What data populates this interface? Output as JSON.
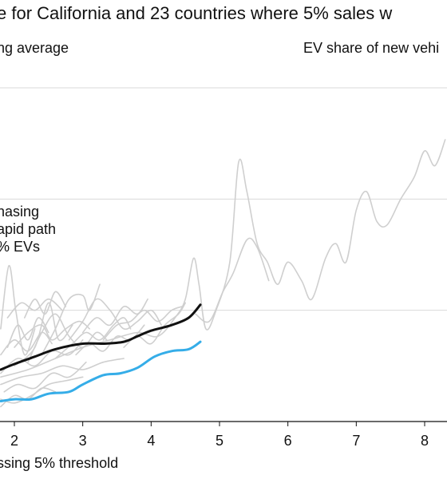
{
  "title": "e for California and 23 countries where 5% sales w",
  "subtitle_left": "ng average",
  "subtitle_right": "EV share of new vehi",
  "annotation_lines": [
    "hasing",
    "apid path",
    "% EVs"
  ],
  "xlabel": "ssing 5% threshold",
  "colors": {
    "highlight": "#35ade8",
    "black": "#111111",
    "gray": "#cfcfcf",
    "grid": "#d9d9d9"
  },
  "chart_data": {
    "type": "line",
    "xlabel": "ssing 5% threshold",
    "x_ticks": [
      2,
      3,
      4,
      5,
      6,
      7,
      8
    ],
    "xlim": [
      1.8,
      8.35
    ],
    "ylim": [
      0,
      1
    ],
    "gridlines": [
      0.3,
      0.6,
      0.9
    ],
    "grid": true,
    "series": [
      {
        "color": "black",
        "points": [
          [
            1.8,
            0.14
          ],
          [
            2.0,
            0.155
          ],
          [
            2.3,
            0.175
          ],
          [
            2.6,
            0.195
          ],
          [
            3.0,
            0.21
          ],
          [
            3.3,
            0.21
          ],
          [
            3.6,
            0.215
          ],
          [
            3.8,
            0.23
          ],
          [
            4.0,
            0.245
          ],
          [
            4.3,
            0.26
          ],
          [
            4.55,
            0.28
          ],
          [
            4.72,
            0.315
          ]
        ]
      },
      {
        "color": "highlight",
        "points": [
          [
            1.8,
            0.055
          ],
          [
            2.0,
            0.06
          ],
          [
            2.25,
            0.06
          ],
          [
            2.5,
            0.075
          ],
          [
            2.8,
            0.08
          ],
          [
            3.0,
            0.1
          ],
          [
            3.3,
            0.125
          ],
          [
            3.55,
            0.13
          ],
          [
            3.8,
            0.145
          ],
          [
            4.05,
            0.175
          ],
          [
            4.3,
            0.19
          ],
          [
            4.55,
            0.195
          ],
          [
            4.72,
            0.215
          ]
        ]
      },
      {
        "color": "gray",
        "points": [
          [
            1.8,
            0.12
          ],
          [
            2.2,
            0.14
          ],
          [
            2.6,
            0.17
          ],
          [
            3.0,
            0.2
          ],
          [
            3.4,
            0.22
          ],
          [
            3.8,
            0.24
          ],
          [
            4.1,
            0.23
          ],
          [
            4.35,
            0.28
          ],
          [
            4.5,
            0.33
          ],
          [
            4.62,
            0.44
          ],
          [
            4.7,
            0.37
          ],
          [
            4.8,
            0.25
          ],
          [
            4.95,
            0.3
          ],
          [
            5.15,
            0.43
          ],
          [
            5.28,
            0.7
          ],
          [
            5.4,
            0.62
          ],
          [
            5.55,
            0.48
          ],
          [
            5.7,
            0.43
          ],
          [
            5.85,
            0.37
          ],
          [
            6.0,
            0.43
          ],
          [
            6.2,
            0.38
          ],
          [
            6.35,
            0.33
          ],
          [
            6.55,
            0.44
          ],
          [
            6.7,
            0.48
          ],
          [
            6.85,
            0.43
          ],
          [
            7.0,
            0.57
          ],
          [
            7.15,
            0.62
          ],
          [
            7.3,
            0.54
          ],
          [
            7.45,
            0.53
          ],
          [
            7.65,
            0.6
          ],
          [
            7.85,
            0.66
          ],
          [
            8.0,
            0.73
          ],
          [
            8.15,
            0.69
          ],
          [
            8.3,
            0.76
          ]
        ]
      },
      {
        "color": "gray",
        "points": [
          [
            4.65,
            0.29
          ],
          [
            4.85,
            0.27
          ],
          [
            5.05,
            0.35
          ],
          [
            5.2,
            0.4
          ],
          [
            5.4,
            0.49
          ],
          [
            5.55,
            0.47
          ],
          [
            5.72,
            0.38
          ]
        ]
      },
      {
        "color": "gray",
        "points": [
          [
            2.0,
            0.2
          ],
          [
            2.2,
            0.24
          ],
          [
            2.4,
            0.26
          ],
          [
            2.55,
            0.22
          ],
          [
            2.75,
            0.25
          ],
          [
            2.95,
            0.27
          ],
          [
            3.1,
            0.25
          ]
        ]
      },
      {
        "color": "gray",
        "points": [
          [
            1.8,
            0.25
          ],
          [
            1.92,
            0.42
          ],
          [
            2.02,
            0.3
          ],
          [
            2.15,
            0.18
          ],
          [
            2.3,
            0.25
          ]
        ]
      },
      {
        "color": "gray",
        "points": [
          [
            2.0,
            0.15
          ],
          [
            2.3,
            0.2
          ],
          [
            2.5,
            0.32
          ],
          [
            2.65,
            0.22
          ],
          [
            2.85,
            0.26
          ]
        ]
      },
      {
        "color": "gray",
        "points": [
          [
            2.4,
            0.18
          ],
          [
            2.6,
            0.25
          ],
          [
            2.8,
            0.33
          ],
          [
            3.0,
            0.34
          ],
          [
            3.1,
            0.3
          ],
          [
            3.25,
            0.37
          ]
        ]
      },
      {
        "color": "gray",
        "points": [
          [
            2.8,
            0.22
          ],
          [
            3.0,
            0.27
          ],
          [
            3.2,
            0.33
          ],
          [
            3.4,
            0.3
          ],
          [
            3.6,
            0.25
          ],
          [
            3.8,
            0.27
          ],
          [
            4.0,
            0.3
          ],
          [
            4.15,
            0.26
          ]
        ]
      },
      {
        "color": "gray",
        "points": [
          [
            1.8,
            0.1
          ],
          [
            2.1,
            0.12
          ],
          [
            2.4,
            0.13
          ],
          [
            2.7,
            0.15
          ],
          [
            3.0,
            0.14
          ],
          [
            3.3,
            0.16
          ],
          [
            3.6,
            0.17
          ]
        ]
      },
      {
        "color": "gray",
        "points": [
          [
            1.9,
            0.28
          ],
          [
            2.1,
            0.32
          ],
          [
            2.3,
            0.3
          ],
          [
            2.5,
            0.33
          ],
          [
            2.7,
            0.3
          ]
        ]
      },
      {
        "color": "gray",
        "points": [
          [
            1.8,
            0.06
          ],
          [
            2.0,
            0.05
          ],
          [
            2.25,
            0.07
          ],
          [
            2.5,
            0.1
          ],
          [
            2.75,
            0.11
          ],
          [
            3.0,
            0.12
          ]
        ]
      },
      {
        "color": "gray",
        "points": [
          [
            2.2,
            0.16
          ],
          [
            2.4,
            0.24
          ],
          [
            2.6,
            0.29
          ],
          [
            2.8,
            0.23
          ],
          [
            3.0,
            0.2
          ],
          [
            3.2,
            0.24
          ],
          [
            3.35,
            0.22
          ]
        ]
      },
      {
        "color": "gray",
        "points": [
          [
            3.3,
            0.22
          ],
          [
            3.5,
            0.26
          ],
          [
            3.7,
            0.27
          ],
          [
            3.9,
            0.3
          ],
          [
            4.1,
            0.27
          ],
          [
            4.3,
            0.3
          ],
          [
            4.45,
            0.31
          ]
        ]
      },
      {
        "color": "gray",
        "points": [
          [
            1.8,
            0.18
          ],
          [
            2.0,
            0.22
          ],
          [
            2.2,
            0.19
          ],
          [
            2.4,
            0.24
          ],
          [
            2.55,
            0.21
          ]
        ]
      },
      {
        "color": "gray",
        "points": [
          [
            2.6,
            0.17
          ],
          [
            2.85,
            0.21
          ],
          [
            3.05,
            0.24
          ],
          [
            3.25,
            0.22
          ],
          [
            3.45,
            0.26
          ],
          [
            3.6,
            0.28
          ],
          [
            3.7,
            0.25
          ]
        ]
      },
      {
        "color": "gray",
        "points": [
          [
            1.85,
            0.08
          ],
          [
            2.05,
            0.1
          ],
          [
            2.3,
            0.09
          ],
          [
            2.55,
            0.13
          ],
          [
            2.8,
            0.12
          ],
          [
            3.05,
            0.16
          ]
        ]
      },
      {
        "color": "gray",
        "points": [
          [
            1.9,
            0.2
          ],
          [
            2.05,
            0.26
          ],
          [
            2.2,
            0.22
          ],
          [
            2.35,
            0.28
          ],
          [
            2.5,
            0.24
          ]
        ]
      },
      {
        "color": "gray",
        "points": [
          [
            3.6,
            0.2
          ],
          [
            3.8,
            0.23
          ],
          [
            4.0,
            0.21
          ],
          [
            4.2,
            0.26
          ],
          [
            4.4,
            0.29
          ],
          [
            4.5,
            0.32
          ]
        ]
      },
      {
        "color": "gray",
        "points": [
          [
            2.9,
            0.18
          ],
          [
            3.1,
            0.21
          ],
          [
            3.3,
            0.19
          ],
          [
            3.5,
            0.23
          ],
          [
            3.7,
            0.22
          ],
          [
            3.9,
            0.26
          ]
        ]
      },
      {
        "color": "gray",
        "points": [
          [
            1.8,
            0.13
          ],
          [
            2.05,
            0.17
          ],
          [
            2.3,
            0.15
          ],
          [
            2.55,
            0.19
          ],
          [
            2.8,
            0.18
          ],
          [
            3.0,
            0.22
          ]
        ]
      },
      {
        "color": "gray",
        "points": [
          [
            2.15,
            0.28
          ],
          [
            2.3,
            0.33
          ],
          [
            2.45,
            0.29
          ],
          [
            2.6,
            0.35
          ],
          [
            2.75,
            0.31
          ]
        ]
      },
      {
        "color": "gray",
        "points": [
          [
            3.0,
            0.24
          ],
          [
            3.2,
            0.28
          ],
          [
            3.4,
            0.26
          ],
          [
            3.6,
            0.31
          ],
          [
            3.8,
            0.29
          ],
          [
            3.95,
            0.33
          ]
        ]
      },
      {
        "color": "gray",
        "points": [
          [
            1.8,
            0.04
          ],
          [
            2.0,
            0.07
          ],
          [
            2.2,
            0.06
          ],
          [
            2.4,
            0.09
          ],
          [
            2.6,
            0.08
          ]
        ]
      }
    ]
  }
}
